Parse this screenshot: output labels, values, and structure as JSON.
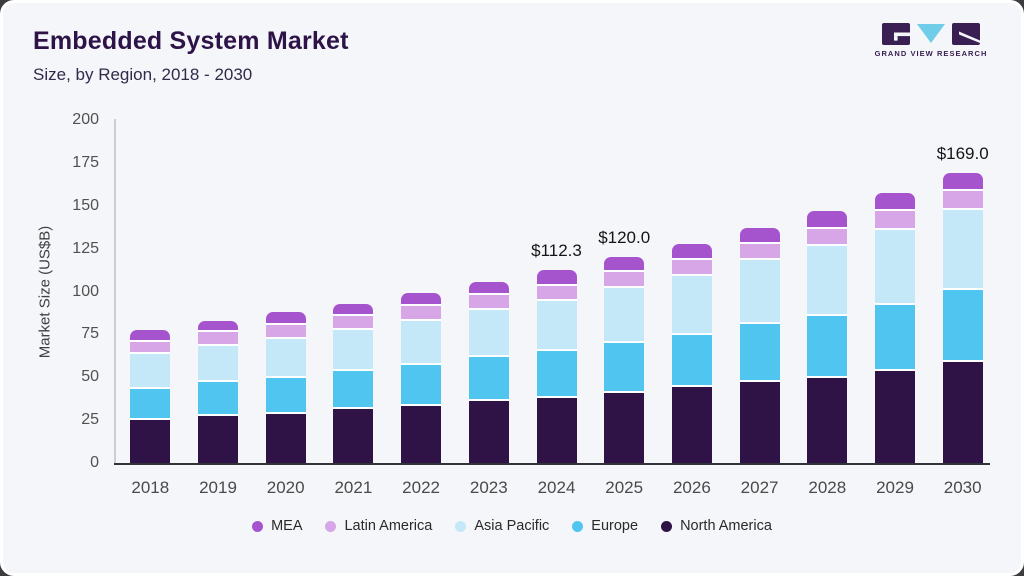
{
  "header": {
    "title": "Embedded System Market",
    "subtitle": "Size, by Region, 2018 - 2030"
  },
  "logo": {
    "brand": "GRAND VIEW RESEARCH",
    "mark_dark_color": "#3a2052",
    "mark_blue_color": "#6fcdea"
  },
  "chart_data": {
    "type": "bar",
    "stacked": true,
    "title": "Embedded System Market Size, by Region, 2018 - 2030",
    "xlabel": "",
    "ylabel": "Market Size (US$B)",
    "ylim": [
      0,
      200
    ],
    "yticks": [
      0,
      25,
      50,
      75,
      100,
      125,
      150,
      175,
      200
    ],
    "grid": false,
    "legend_position": "bottom",
    "categories": [
      "2018",
      "2019",
      "2020",
      "2021",
      "2022",
      "2023",
      "2024",
      "2025",
      "2026",
      "2027",
      "2028",
      "2029",
      "2030"
    ],
    "series": [
      {
        "name": "North America",
        "color": "#2f1246",
        "values": [
          26.5,
          28.5,
          30,
          32.5,
          34.5,
          37.5,
          39,
          42,
          45.5,
          48.5,
          51,
          55,
          60
        ]
      },
      {
        "name": "Europe",
        "color": "#4fc5ef",
        "values": [
          18,
          20,
          21,
          22.5,
          24,
          25.5,
          27.5,
          29,
          30.5,
          33.5,
          36,
          38.5,
          42
        ]
      },
      {
        "name": "Asia Pacific",
        "color": "#c4e8f8",
        "values": [
          20.5,
          21,
          22.5,
          24,
          25.5,
          27.5,
          29.3,
          32.5,
          34.5,
          37.5,
          40.5,
          43.5,
          46.5
        ]
      },
      {
        "name": "Latin America",
        "color": "#d7a6e6",
        "values": [
          7,
          8,
          8,
          8,
          8.5,
          8.5,
          8.5,
          9,
          9,
          9.5,
          10,
          11,
          11
        ]
      },
      {
        "name": "MEA",
        "color": "#a653ce",
        "values": [
          5.5,
          5.5,
          6.5,
          6,
          6.5,
          6.5,
          8,
          7.5,
          8,
          8,
          9.5,
          9.5,
          9.5
        ]
      }
    ],
    "legend": [
      "MEA",
      "Latin America",
      "Asia Pacific",
      "Europe",
      "North America"
    ],
    "annotations": [
      {
        "category": "2024",
        "text": "$112.3"
      },
      {
        "category": "2025",
        "text": "$120.0"
      },
      {
        "category": "2030",
        "text": "$169.0"
      }
    ]
  }
}
